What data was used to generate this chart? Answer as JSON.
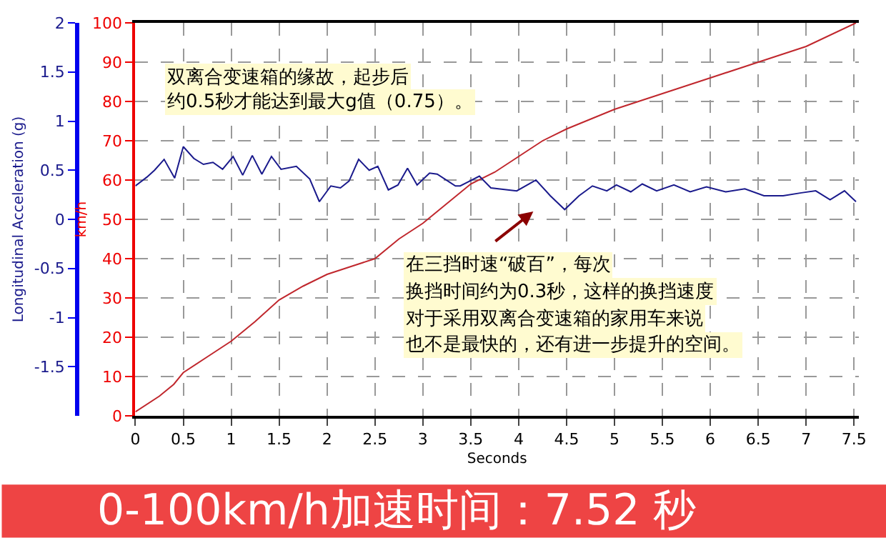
{
  "chart_data": {
    "type": "line",
    "title": "0-100km/h加速时间：7.52 秒",
    "xlabel": "Seconds",
    "ylabel": "km/h",
    "y2label": "Longitudinal Acceleration (g)",
    "xlim": [
      0,
      7.55
    ],
    "xticks": [
      0,
      0.5,
      1,
      1.5,
      2,
      2.5,
      3,
      3.5,
      4,
      4.5,
      5,
      5.5,
      6,
      6.5,
      7,
      7.5
    ],
    "ylim": [
      0,
      100
    ],
    "yticks": [
      0,
      10,
      20,
      30,
      40,
      50,
      60,
      70,
      80,
      90,
      100
    ],
    "y2lim": [
      -2,
      2
    ],
    "y2ticks": [
      -1.5,
      -1,
      -0.5,
      0,
      0.5,
      1,
      1.5,
      2
    ],
    "grid": true,
    "legend": false,
    "marker": "none",
    "line_style": "solid",
    "series": [
      {
        "color": "#c0272d",
        "x": [
          0,
          0.25,
          0.4,
          0.5,
          0.75,
          1,
          1.25,
          1.5,
          1.75,
          2,
          2.25,
          2.5,
          2.75,
          3,
          3.25,
          3.5,
          3.75,
          4,
          4.25,
          4.5,
          5,
          5.5,
          6,
          6.5,
          7,
          7.52
        ],
        "values": [
          1,
          5,
          8,
          11,
          15,
          19,
          24,
          29.5,
          33,
          36,
          38,
          40,
          45,
          49,
          54,
          59,
          62,
          66,
          70,
          73,
          78,
          82,
          86,
          90,
          94,
          100
        ]
      },
      {
        "color": "#1a1a8c",
        "axis": "y2",
        "x": [
          0,
          0.12,
          0.2,
          0.3,
          0.41,
          0.5,
          0.61,
          0.71,
          0.81,
          0.91,
          1.02,
          1.12,
          1.22,
          1.32,
          1.42,
          1.52,
          1.68,
          1.82,
          1.92,
          2.04,
          2.14,
          2.23,
          2.33,
          2.44,
          2.53,
          2.64,
          2.74,
          2.84,
          2.94,
          3.07,
          3.15,
          3.34,
          3.39,
          3.59,
          3.71,
          3.98,
          4.18,
          4.33,
          4.48,
          4.63,
          4.77,
          4.92,
          5.02,
          5.17,
          5.29,
          5.44,
          5.62,
          5.79,
          5.96,
          6.16,
          6.36,
          6.56,
          6.76,
          6.95,
          7.1,
          7.25,
          7.4,
          7.52
        ],
        "values": [
          0.34,
          0.43,
          0.5,
          0.61,
          0.42,
          0.74,
          0.62,
          0.56,
          0.58,
          0.51,
          0.64,
          0.45,
          0.65,
          0.46,
          0.64,
          0.51,
          0.54,
          0.41,
          0.18,
          0.34,
          0.32,
          0.39,
          0.61,
          0.5,
          0.54,
          0.3,
          0.35,
          0.52,
          0.35,
          0.47,
          0.46,
          0.34,
          0.34,
          0.44,
          0.32,
          0.29,
          0.4,
          0.24,
          0.1,
          0.24,
          0.34,
          0.29,
          0.35,
          0.28,
          0.36,
          0.29,
          0.35,
          0.28,
          0.33,
          0.28,
          0.31,
          0.24,
          0.24,
          0.27,
          0.29,
          0.2,
          0.29,
          0.18
        ]
      }
    ],
    "annotations": [
      "双离合变速箱的缘故，起步后",
      "约0.5秒才能达到最大g值（0.75）。",
      "在三挡时速“破百”，每次",
      "换挡时间约为0.3秒，这样的换挡速度",
      "对于采用双离合变速箱的家用车来说",
      "也不是最快的，还有进一步提升的空间。"
    ]
  }
}
